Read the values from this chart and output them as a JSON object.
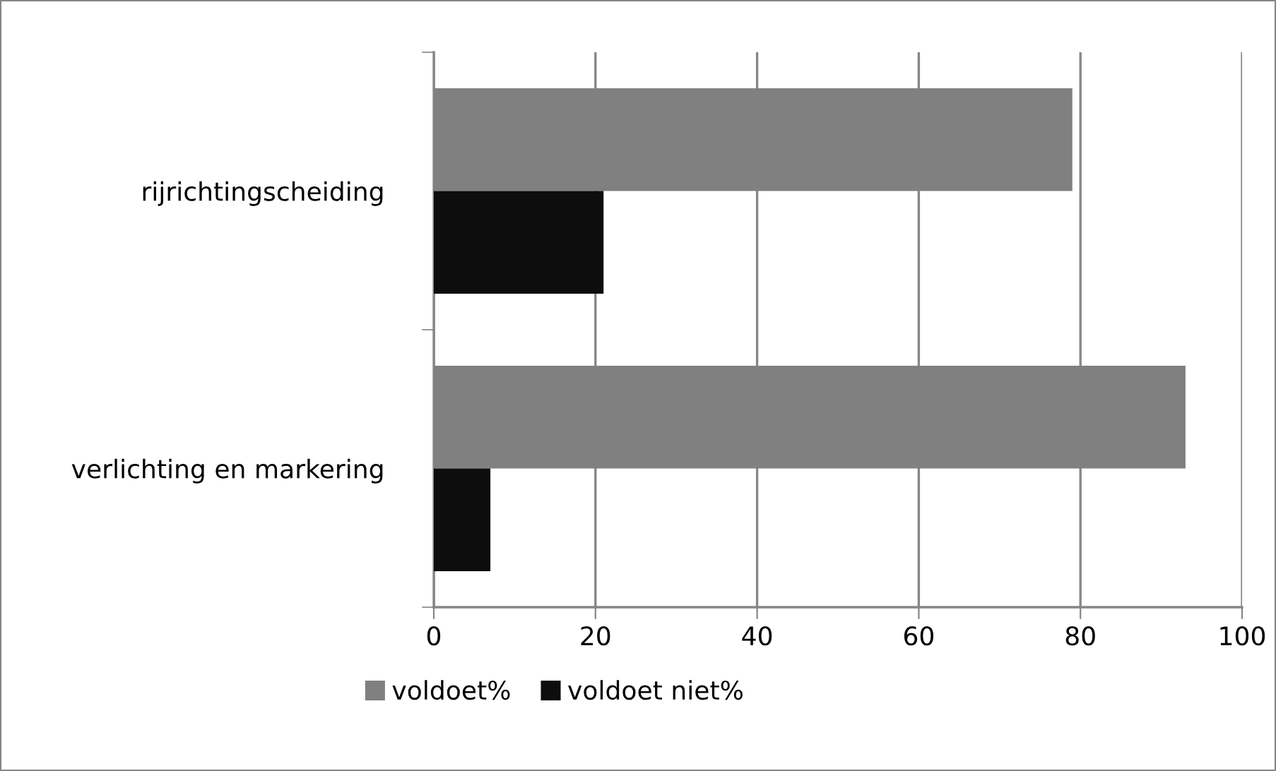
{
  "chart_data": {
    "type": "bar",
    "orientation": "horizontal",
    "categories": [
      "rijrichtingscheiding",
      "verlichting en markering"
    ],
    "series": [
      {
        "name": "voldoet%",
        "color": "#808080",
        "values": [
          79,
          93
        ]
      },
      {
        "name": "voldoet niet%",
        "color": "#0d0d0d",
        "values": [
          21,
          7
        ]
      }
    ],
    "xlim": [
      0,
      100
    ],
    "xticks": [
      0,
      20,
      40,
      60,
      80,
      100
    ],
    "grid": "x",
    "legend": "bottom"
  }
}
